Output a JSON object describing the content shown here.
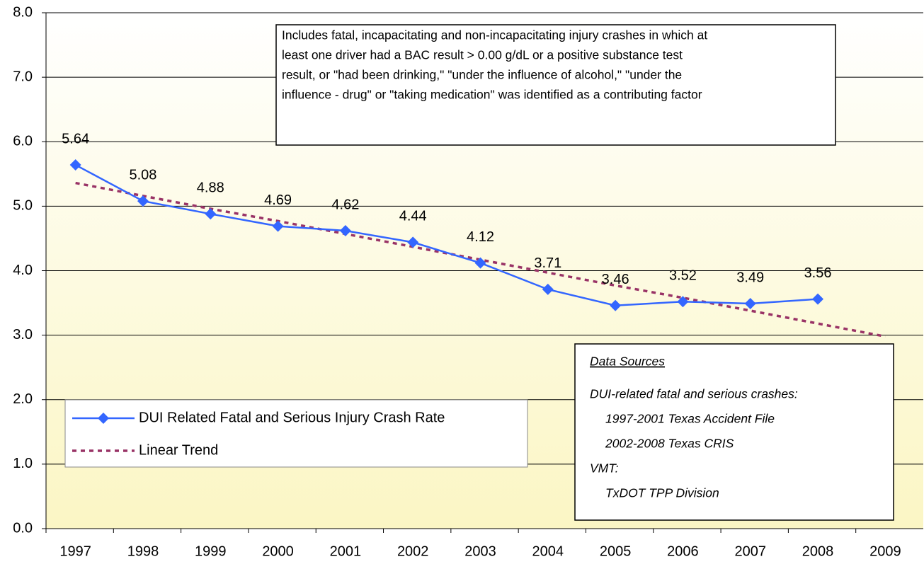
{
  "chart_data": {
    "type": "line",
    "categories": [
      "1997",
      "1998",
      "1999",
      "2000",
      "2001",
      "2002",
      "2003",
      "2004",
      "2005",
      "2006",
      "2007",
      "2008",
      "2009"
    ],
    "series": [
      {
        "name": "DUI Related Fatal and Serious Injury Crash Rate",
        "color": "#3366ff",
        "marker": "diamond",
        "values": [
          5.64,
          5.08,
          4.88,
          4.69,
          4.62,
          4.44,
          4.12,
          3.71,
          3.46,
          3.52,
          3.49,
          3.56,
          null
        ],
        "data_labels": true
      },
      {
        "name": "Linear Trend",
        "color": "#993366",
        "dashed": true,
        "values": [
          5.36,
          5.16,
          4.96,
          4.77,
          4.57,
          4.37,
          4.17,
          3.97,
          3.77,
          3.58,
          3.38,
          3.18,
          2.98
        ]
      }
    ],
    "ylim": [
      0,
      8
    ],
    "yticks": [
      {
        "value": 0,
        "label": "0.0"
      },
      {
        "value": 1,
        "label": "1.0"
      },
      {
        "value": 2,
        "label": "2.0"
      },
      {
        "value": 3,
        "label": "3.0"
      },
      {
        "value": 4,
        "label": "4.0"
      },
      {
        "value": 5,
        "label": "5.0"
      },
      {
        "value": 6,
        "label": "6.0"
      },
      {
        "value": 7,
        "label": "7.0"
      },
      {
        "value": 8,
        "label": "8.0"
      }
    ],
    "grid": true,
    "legend": "bottom-left",
    "note_lines": [
      "Includes fatal, incapacitating and non-incapacitating injury crashes in which at",
      "least one driver had a BAC result > 0.00 g/dL or a positive substance test",
      "result, or \"had been drinking,\" \"under the influence of alcohol,\" \"under the",
      "influence - drug\" or \"taking medication\" was identified as a contributing factor"
    ],
    "data_sources": {
      "title": "Data Sources",
      "groups": [
        {
          "label": "DUI-related fatal and serious crashes:",
          "items": [
            "1997-2001 Texas Accident File",
            "2002-2008 Texas CRIS"
          ]
        },
        {
          "label": "VMT:",
          "items": [
            "TxDOT TPP Division"
          ]
        }
      ]
    }
  }
}
